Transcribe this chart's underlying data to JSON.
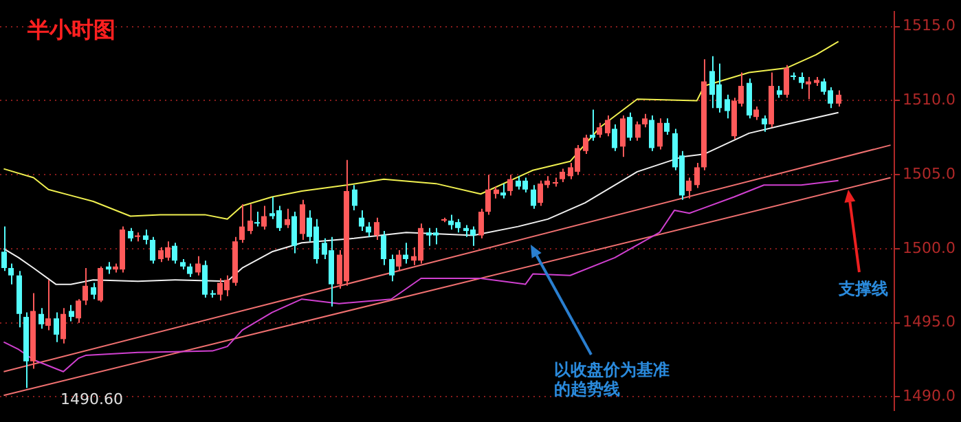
{
  "chart_data": {
    "type": "candlestick",
    "title": "半小时图",
    "categories": [
      null,
      null,
      null,
      null,
      null,
      null,
      null,
      null,
      null,
      null,
      null,
      null,
      null,
      null,
      null,
      null,
      null,
      null,
      null,
      null,
      null,
      null,
      null,
      null,
      null,
      null,
      null,
      null,
      null,
      null,
      null,
      null,
      null,
      null,
      null,
      null,
      null,
      null,
      null,
      null,
      null,
      null,
      null,
      null,
      null,
      null,
      null,
      null,
      null,
      null,
      null,
      null,
      null,
      null,
      null,
      null,
      null,
      null,
      null,
      null,
      null,
      null,
      null,
      null,
      null,
      null,
      null,
      null,
      null,
      null,
      null,
      null,
      null,
      null,
      null,
      null,
      null,
      null,
      null,
      null,
      null,
      null,
      null,
      null,
      null,
      null,
      null,
      null,
      null,
      null,
      null,
      null,
      null,
      null,
      null,
      null,
      null,
      null,
      null,
      null,
      null,
      null,
      null,
      null,
      null,
      null,
      null,
      null,
      null,
      null,
      null,
      null,
      null,
      null,
      null,
      null,
      null,
      null,
      null,
      null
    ],
    "ohlc": [
      [
        1499.8,
        1501.5,
        1498.5,
        1498.7
      ],
      [
        1498.7,
        1499.0,
        1497.6,
        1498.2
      ],
      [
        1498.2,
        1498.5,
        1494.7,
        1495.6
      ],
      [
        1495.4,
        1495.7,
        1490.6,
        1492.4
      ],
      [
        1492.4,
        1497.0,
        1491.9,
        1495.8
      ],
      [
        1495.6,
        1496.0,
        1494.6,
        1494.9
      ],
      [
        1494.8,
        1497.9,
        1494.5,
        1495.3
      ],
      [
        1495.3,
        1495.7,
        1493.7,
        1494.2
      ],
      [
        1493.9,
        1496.0,
        1493.6,
        1495.6
      ],
      [
        1495.8,
        1496.2,
        1495.1,
        1495.4
      ],
      [
        1495.3,
        1496.6,
        1495.0,
        1496.5
      ],
      [
        1496.5,
        1498.7,
        1496.2,
        1497.5
      ],
      [
        1497.4,
        1497.7,
        1496.6,
        1496.9
      ],
      [
        1496.5,
        1498.8,
        1496.4,
        1498.7
      ],
      [
        1498.8,
        1499.1,
        1498.3,
        1498.6
      ],
      [
        1498.6,
        1499.0,
        1498.4,
        1498.8
      ],
      [
        1498.6,
        1501.5,
        1498.4,
        1501.3
      ],
      [
        1501.2,
        1501.4,
        1500.5,
        1500.7
      ],
      [
        1500.8,
        1501.1,
        1500.5,
        1500.9
      ],
      [
        1500.9,
        1501.3,
        1500.3,
        1500.6
      ],
      [
        1500.6,
        1500.8,
        1499.0,
        1499.2
      ],
      [
        1499.3,
        1500.1,
        1499.1,
        1499.9
      ],
      [
        1499.4,
        1500.5,
        1499.2,
        1500.1
      ],
      [
        1500.2,
        1500.4,
        1499.0,
        1499.2
      ],
      [
        1499.1,
        1499.3,
        1498.6,
        1498.8
      ],
      [
        1498.8,
        1499.0,
        1498.1,
        1498.3
      ],
      [
        1498.4,
        1499.5,
        1498.2,
        1499.0
      ],
      [
        1498.9,
        1499.2,
        1496.7,
        1496.9
      ],
      [
        1497.0,
        1497.2,
        1496.7,
        1496.9
      ],
      [
        1496.9,
        1498.0,
        1496.5,
        1497.7
      ],
      [
        1497.2,
        1498.2,
        1496.8,
        1497.9
      ],
      [
        1497.7,
        1500.8,
        1497.5,
        1500.5
      ],
      [
        1500.6,
        1503.0,
        1500.4,
        1501.5
      ],
      [
        1501.2,
        1503.0,
        1501.0,
        1501.9
      ],
      [
        1501.8,
        1502.5,
        1501.5,
        1501.7
      ],
      [
        1501.5,
        1502.9,
        1501.3,
        1502.2
      ],
      [
        1502.4,
        1503.5,
        1502.0,
        1502.2
      ],
      [
        1502.6,
        1502.9,
        1501.2,
        1501.4
      ],
      [
        1501.6,
        1502.7,
        1501.4,
        1502.0
      ],
      [
        1502.2,
        1502.5,
        1499.7,
        1500.2
      ],
      [
        1501.0,
        1503.3,
        1500.6,
        1503.0
      ],
      [
        1502.1,
        1502.6,
        1500.5,
        1500.8
      ],
      [
        1501.5,
        1502.0,
        1499.0,
        1499.3
      ],
      [
        1500.4,
        1500.7,
        1499.3,
        1499.6
      ],
      [
        1499.9,
        1500.8,
        1496.1,
        1497.6
      ],
      [
        1497.6,
        1499.9,
        1497.3,
        1499.6
      ],
      [
        1497.8,
        1506.0,
        1497.5,
        1503.9
      ],
      [
        1504.0,
        1504.3,
        1502.6,
        1502.9
      ],
      [
        1502.1,
        1502.6,
        1501.2,
        1501.5
      ],
      [
        1501.5,
        1501.8,
        1500.8,
        1501.1
      ],
      [
        1500.9,
        1502.1,
        1500.6,
        1501.8
      ],
      [
        1500.9,
        1501.2,
        1498.9,
        1499.3
      ],
      [
        1499.3,
        1499.6,
        1497.8,
        1498.2
      ],
      [
        1498.8,
        1499.9,
        1498.5,
        1499.6
      ],
      [
        1499.6,
        1500.4,
        1499.0,
        1499.3
      ],
      [
        1499.2,
        1500.1,
        1498.9,
        1499.5
      ],
      [
        1499.2,
        1501.7,
        1499.0,
        1501.4
      ],
      [
        1501.1,
        1501.4,
        1500.2,
        1500.9
      ],
      [
        1501.1,
        1501.4,
        1500.3,
        1500.9
      ],
      [
        1501.9,
        1502.1,
        1501.8,
        1502.0
      ],
      [
        1501.9,
        1502.3,
        1501.3,
        1501.6
      ],
      [
        1501.8,
        1502.0,
        1501.1,
        1501.4
      ],
      [
        1501.4,
        1501.6,
        1500.8,
        1501.2
      ],
      [
        1501.3,
        1501.5,
        1500.2,
        1500.9
      ],
      [
        1500.9,
        1502.7,
        1500.7,
        1502.5
      ],
      [
        1502.5,
        1505.0,
        1502.3,
        1504.0
      ],
      [
        1503.7,
        1504.2,
        1503.4,
        1504.0
      ],
      [
        1503.8,
        1504.4,
        1503.4,
        1503.6
      ],
      [
        1503.9,
        1505.0,
        1503.6,
        1504.7
      ],
      [
        1504.6,
        1504.9,
        1504.0,
        1504.2
      ],
      [
        1504.6,
        1504.8,
        1503.8,
        1504.0
      ],
      [
        1504.0,
        1504.3,
        1502.7,
        1502.9
      ],
      [
        1503.1,
        1504.6,
        1502.9,
        1504.4
      ],
      [
        1504.3,
        1504.9,
        1504.1,
        1504.6
      ],
      [
        1504.4,
        1504.8,
        1504.2,
        1504.5
      ],
      [
        1504.7,
        1505.4,
        1504.5,
        1505.2
      ],
      [
        1504.9,
        1505.8,
        1504.7,
        1505.5
      ],
      [
        1505.2,
        1507.0,
        1505.0,
        1506.8
      ],
      [
        1506.6,
        1507.7,
        1506.4,
        1507.5
      ],
      [
        1507.7,
        1509.4,
        1507.3,
        1507.5
      ],
      [
        1507.7,
        1508.5,
        1507.5,
        1508.2
      ],
      [
        1507.8,
        1509.0,
        1507.6,
        1508.7
      ],
      [
        1508.1,
        1508.4,
        1506.6,
        1506.8
      ],
      [
        1506.9,
        1509.0,
        1506.2,
        1508.8
      ],
      [
        1508.9,
        1509.2,
        1507.3,
        1507.5
      ],
      [
        1507.5,
        1508.6,
        1507.3,
        1508.4
      ],
      [
        1508.4,
        1509.1,
        1508.2,
        1508.8
      ],
      [
        1508.7,
        1509.0,
        1506.6,
        1506.8
      ],
      [
        1506.9,
        1508.8,
        1506.7,
        1508.5
      ],
      [
        1508.5,
        1508.8,
        1507.7,
        1507.9
      ],
      [
        1507.8,
        1508.1,
        1505.3,
        1505.5
      ],
      [
        1506.3,
        1506.6,
        1503.3,
        1503.6
      ],
      [
        1503.9,
        1504.8,
        1503.4,
        1504.6
      ],
      [
        1504.3,
        1505.8,
        1504.1,
        1505.5
      ],
      [
        1505.5,
        1512.8,
        1505.3,
        1511.3
      ],
      [
        1512.0,
        1513.0,
        1509.5,
        1510.4
      ],
      [
        1511.1,
        1512.5,
        1509.2,
        1509.5
      ],
      [
        1510.1,
        1510.4,
        1508.8,
        1509.3
      ],
      [
        1507.6,
        1510.2,
        1507.4,
        1510.0
      ],
      [
        1509.8,
        1511.9,
        1509.6,
        1511.0
      ],
      [
        1511.2,
        1511.5,
        1508.8,
        1509.0
      ],
      [
        1508.9,
        1509.6,
        1508.7,
        1509.4
      ],
      [
        1508.8,
        1509.0,
        1507.9,
        1508.4
      ],
      [
        1508.4,
        1511.9,
        1508.2,
        1511.0
      ],
      [
        1510.7,
        1511.0,
        1510.2,
        1510.4
      ],
      [
        1510.4,
        1512.4,
        1510.2,
        1512.2
      ],
      [
        1511.7,
        1511.9,
        1511.4,
        1511.6
      ],
      [
        1511.6,
        1511.9,
        1510.8,
        1511.2
      ],
      [
        1511.1,
        1511.6,
        1510.1,
        1511.3
      ],
      [
        1511.2,
        1511.6,
        1511.0,
        1511.4
      ],
      [
        1511.3,
        1511.5,
        1510.4,
        1510.6
      ],
      [
        1510.7,
        1510.9,
        1509.5,
        1509.8
      ],
      [
        1509.8,
        1510.7,
        1509.6,
        1510.4
      ],
      null,
      null,
      null,
      null,
      null,
      null,
      null
    ],
    "colors": [
      "#54fcfc",
      "#54fcfc",
      "#54fcfc",
      "#54fcfc",
      "#ff5a5a",
      "#54fcfc",
      "#ff5a5a",
      "#54fcfc",
      "#ff5a5a",
      "#54fcfc",
      "#ff5a5a",
      "#ff5a5a",
      "#54fcfc",
      "#ff5a5a",
      "#54fcfc",
      "#ff5a5a",
      "#ff5a5a",
      "#54fcfc",
      "#ff5a5a",
      "#54fcfc",
      "#54fcfc",
      "#ff5a5a",
      "#ff5a5a",
      "#54fcfc",
      "#54fcfc",
      "#54fcfc",
      "#ff5a5a",
      "#54fcfc",
      "#54fcfc",
      "#ff5a5a",
      "#ff5a5a",
      "#ff5a5a",
      "#ff5a5a",
      "#ff5a5a",
      "#54fcfc",
      "#ff5a5a",
      "#54fcfc",
      "#54fcfc",
      "#ff5a5a",
      "#54fcfc",
      "#ff5a5a",
      "#54fcfc",
      "#54fcfc",
      "#54fcfc",
      "#54fcfc",
      "#ff5a5a",
      "#ff5a5a",
      "#54fcfc",
      "#54fcfc",
      "#54fcfc",
      "#ff5a5a",
      "#54fcfc",
      "#54fcfc",
      "#ff5a5a",
      "#54fcfc",
      "#ff5a5a",
      "#ff5a5a",
      "#54fcfc",
      "#54fcfc",
      "#ff5a5a",
      "#54fcfc",
      "#54fcfc",
      "#54fcfc",
      "#54fcfc",
      "#ff5a5a",
      "#ff5a5a",
      "#ff5a5a",
      "#54fcfc",
      "#ff5a5a",
      "#54fcfc",
      "#54fcfc",
      "#54fcfc",
      "#ff5a5a",
      "#ff5a5a",
      "#ff5a5a",
      "#ff5a5a",
      "#ff5a5a",
      "#ff5a5a",
      "#ff5a5a",
      "#54fcfc",
      "#ff5a5a",
      "#ff5a5a",
      "#54fcfc",
      "#ff5a5a",
      "#54fcfc",
      "#ff5a5a",
      "#ff5a5a",
      "#54fcfc",
      "#ff5a5a",
      "#54fcfc",
      "#54fcfc",
      "#54fcfc",
      "#ff5a5a",
      "#ff5a5a",
      "#ff5a5a",
      "#54fcfc",
      "#54fcfc",
      "#54fcfc",
      "#ff5a5a",
      "#ff5a5a",
      "#54fcfc",
      "#ff5a5a",
      "#54fcfc",
      "#ff5a5a",
      "#54fcfc",
      "#ff5a5a",
      "#54fcfc",
      "#54fcfc",
      "#ff5a5a",
      "#ff5a5a",
      "#54fcfc",
      "#54fcfc",
      "#ff5a5a",
      null,
      null,
      null,
      null,
      null,
      null,
      null
    ],
    "series": [
      {
        "type": "line",
        "color": "#f0f050",
        "values": [
          1505.4,
          null,
          null,
          null,
          1504.8,
          null,
          1504.0,
          null,
          null,
          1503.6,
          null,
          null,
          1503.2,
          null,
          null,
          null,
          null,
          1502.2,
          null,
          null,
          null,
          1502.3,
          null,
          null,
          null,
          null,
          null,
          1502.3,
          null,
          null,
          1502.0,
          null,
          1502.9,
          null,
          null,
          null,
          1503.5,
          null,
          null,
          null,
          1503.9,
          null,
          null,
          null,
          null,
          null,
          1504.3,
          null,
          null,
          null,
          null,
          1504.7,
          null,
          null,
          null,
          null,
          null,
          null,
          1504.4,
          null,
          null,
          null,
          null,
          null,
          1503.7,
          null,
          null,
          null,
          null,
          null,
          null,
          1505.3,
          null,
          null,
          null,
          null,
          1505.9,
          null,
          null,
          null,
          1508.2,
          null,
          null,
          null,
          null,
          1510.1,
          null,
          null,
          null,
          null,
          null,
          null,
          null,
          1510.0,
          1511.0,
          null,
          null,
          null,
          null,
          null,
          1511.9,
          null,
          null,
          null,
          null,
          1512.2,
          null,
          null,
          null,
          1513.1,
          null,
          null,
          1514.0,
          null,
          null,
          null,
          null,
          null,
          null,
          null
        ]
      },
      {
        "type": "line",
        "color": "#f0f0f0",
        "values": [
          1500.0,
          null,
          1499.4,
          null,
          1498.7,
          null,
          null,
          1497.6,
          null,
          1497.6,
          null,
          null,
          1497.9,
          null,
          null,
          null,
          null,
          null,
          1497.8,
          null,
          null,
          null,
          null,
          1497.9,
          null,
          null,
          null,
          null,
          null,
          null,
          1497.8,
          null,
          1498.7,
          null,
          null,
          null,
          1499.8,
          null,
          null,
          null,
          1500.4,
          null,
          null,
          null,
          null,
          null,
          null,
          1500.7,
          null,
          null,
          null,
          null,
          null,
          null,
          1501.1,
          null,
          null,
          null,
          null,
          null,
          null,
          null,
          null,
          1500.9,
          null,
          null,
          null,
          null,
          null,
          1501.5,
          null,
          null,
          null,
          1502.0,
          null,
          null,
          null,
          null,
          1503.1,
          null,
          null,
          null,
          null,
          null,
          null,
          1505.2,
          null,
          null,
          null,
          null,
          null,
          1506.2,
          null,
          null,
          1506.4,
          null,
          null,
          null,
          null,
          null,
          1507.8,
          null,
          null,
          null,
          null,
          1508.4,
          null,
          null,
          null,
          null,
          null,
          null,
          1509.2,
          null,
          null,
          null,
          null,
          null,
          null,
          null
        ]
      },
      {
        "type": "line",
        "color": "#d040d0",
        "values": [
          1493.7,
          null,
          1493.2,
          null,
          1492.5,
          null,
          null,
          null,
          1491.7,
          null,
          1492.6,
          1492.8,
          null,
          null,
          null,
          null,
          null,
          null,
          1493.0,
          null,
          null,
          null,
          null,
          null,
          null,
          null,
          null,
          null,
          1493.1,
          null,
          1493.4,
          null,
          1494.5,
          null,
          null,
          null,
          1495.7,
          null,
          null,
          null,
          1496.6,
          null,
          null,
          null,
          null,
          1496.3,
          null,
          null,
          null,
          null,
          null,
          null,
          1496.6,
          null,
          null,
          null,
          1498.0,
          null,
          null,
          null,
          null,
          null,
          null,
          null,
          1498.0,
          null,
          null,
          null,
          null,
          null,
          1497.6,
          1498.3,
          null,
          null,
          null,
          null,
          1498.2,
          null,
          null,
          null,
          null,
          null,
          1499.4,
          null,
          null,
          null,
          null,
          null,
          1501.1,
          null,
          1502.6,
          null,
          1502.4,
          null,
          null,
          null,
          null,
          null,
          1503.5,
          null,
          null,
          null,
          1504.3,
          null,
          null,
          null,
          null,
          1504.3,
          null,
          null,
          null,
          null,
          1504.6,
          null,
          null,
          null,
          null,
          null,
          null,
          null
        ]
      },
      {
        "type": "line",
        "color": "#f07070",
        "values": [
          1491.7,
          null,
          null,
          null,
          null,
          null,
          null,
          null,
          null,
          null,
          null,
          null,
          null,
          null,
          null,
          null,
          null,
          null,
          null,
          null,
          null,
          null,
          null,
          null,
          null,
          null,
          null,
          null,
          null,
          null,
          null,
          null,
          null,
          null,
          null,
          null,
          null,
          null,
          null,
          null,
          null,
          null,
          null,
          null,
          null,
          null,
          null,
          null,
          null,
          null,
          null,
          null,
          null,
          null,
          null,
          null,
          null,
          null,
          null,
          null,
          null,
          null,
          null,
          null,
          null,
          null,
          null,
          null,
          null,
          null,
          null,
          null,
          null,
          null,
          null,
          null,
          null,
          null,
          null,
          null,
          null,
          null,
          null,
          null,
          null,
          null,
          null,
          null,
          null,
          null,
          null,
          null,
          null,
          null,
          null,
          null,
          null,
          null,
          null,
          null,
          null,
          null,
          null,
          null,
          null,
          null,
          null,
          null,
          null,
          null,
          null,
          null,
          null,
          null,
          null,
          null,
          null,
          null,
          null,
          1507.0
        ]
      },
      {
        "type": "line",
        "color": "#f07070",
        "values": [
          1490.1,
          null,
          null,
          null,
          null,
          null,
          null,
          null,
          null,
          null,
          null,
          null,
          null,
          null,
          null,
          null,
          null,
          null,
          null,
          null,
          null,
          null,
          null,
          null,
          null,
          null,
          null,
          null,
          null,
          null,
          null,
          null,
          null,
          null,
          null,
          null,
          null,
          null,
          null,
          null,
          null,
          null,
          null,
          null,
          null,
          null,
          null,
          null,
          null,
          null,
          null,
          null,
          null,
          null,
          null,
          null,
          null,
          null,
          null,
          null,
          null,
          null,
          null,
          null,
          null,
          null,
          null,
          null,
          null,
          null,
          null,
          null,
          null,
          null,
          null,
          null,
          null,
          null,
          null,
          null,
          null,
          null,
          null,
          null,
          null,
          null,
          null,
          null,
          null,
          null,
          null,
          null,
          null,
          null,
          null,
          null,
          null,
          null,
          null,
          null,
          null,
          null,
          null,
          null,
          null,
          null,
          null,
          null,
          null,
          null,
          null,
          null,
          null,
          null,
          null,
          null,
          null,
          null,
          null,
          1504.8
        ]
      }
    ],
    "ylim": [
      1489.1,
      1516.0
    ],
    "yticks": [
      {
        "value": 1490,
        "label": "1490.0"
      },
      {
        "value": 1495,
        "label": "1495.0"
      },
      {
        "value": 1500,
        "label": "1500.0"
      },
      {
        "value": 1505,
        "label": "1505.0"
      },
      {
        "value": 1510,
        "label": "1510.0"
      },
      {
        "value": 1515,
        "label": "1515.0"
      }
    ],
    "grid": "y",
    "legend": false,
    "annotations": [
      "1490.60",
      "以收盘价为基准的趋势线",
      "支撑线"
    ]
  }
}
